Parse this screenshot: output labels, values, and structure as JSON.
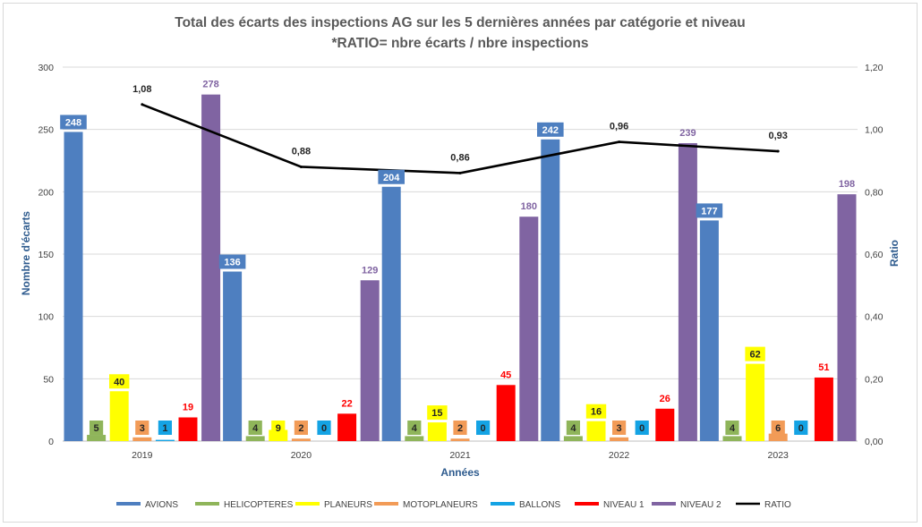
{
  "chart_data": {
    "type": "bar",
    "title": "Total des écarts des inspections AG sur les 5 dernières années par catégorie et niveau",
    "subtitle": "*RATIO= nbre écarts / nbre inspections",
    "xlabel": "Années",
    "ylabel": "Nombre d'écarts",
    "y2label": "Ratio",
    "categories": [
      "2019",
      "2020",
      "2021",
      "2022",
      "2023"
    ],
    "ylim": [
      0,
      300
    ],
    "yticks": [
      "0",
      "50",
      "100",
      "150",
      "200",
      "250",
      "300"
    ],
    "y2lim": [
      0,
      1.2
    ],
    "y2ticks": [
      "0,00",
      "0,20",
      "0,40",
      "0,60",
      "0,80",
      "1,00",
      "1,20"
    ],
    "grid": true,
    "legend_position": "bottom",
    "series": [
      {
        "name": "AVIONS",
        "color": "#4e7fc0",
        "label_style": "boxed",
        "values": [
          248,
          136,
          204,
          242,
          177
        ],
        "labels": [
          "248",
          "136",
          "204",
          "242",
          "177"
        ]
      },
      {
        "name": "HELICOPTERES",
        "color": "#8fb55a",
        "label_style": "boxed",
        "values": [
          5,
          4,
          4,
          4,
          4
        ],
        "labels": [
          "5",
          "4",
          "4",
          "4",
          "4"
        ]
      },
      {
        "name": "PLANEURS",
        "color": "#ffff00",
        "label_style": "boxed",
        "values": [
          40,
          9,
          15,
          16,
          62
        ],
        "labels": [
          "40",
          "9",
          "15",
          "16",
          "62"
        ]
      },
      {
        "name": "MOTOPLANEURS",
        "color": "#f29b57",
        "label_style": "boxed",
        "values": [
          3,
          2,
          2,
          3,
          6
        ],
        "labels": [
          "3",
          "2",
          "2",
          "3",
          "6"
        ]
      },
      {
        "name": "BALLONS",
        "color": "#14a3e4",
        "label_style": "boxed",
        "values": [
          1,
          0,
          0,
          0,
          0
        ],
        "labels": [
          "1",
          "0",
          "0",
          "0",
          "0"
        ]
      },
      {
        "name": "NIVEAU 1",
        "color": "#ff0000",
        "label_style": "text",
        "values": [
          19,
          22,
          45,
          26,
          51
        ],
        "labels": [
          "19",
          "22",
          "45",
          "26",
          "51"
        ]
      },
      {
        "name": "NIVEAU 2",
        "color": "#8064a2",
        "label_style": "text",
        "values": [
          278,
          129,
          180,
          239,
          198
        ],
        "labels": [
          "278",
          "129",
          "180",
          "239",
          "198"
        ]
      }
    ],
    "line_series": {
      "name": "RATIO",
      "color": "#000000",
      "axis": "right",
      "values": [
        1.08,
        0.88,
        0.86,
        0.96,
        0.93
      ],
      "labels": [
        "1,08",
        "0,88",
        "0,86",
        "0,96",
        "0,93"
      ]
    }
  }
}
